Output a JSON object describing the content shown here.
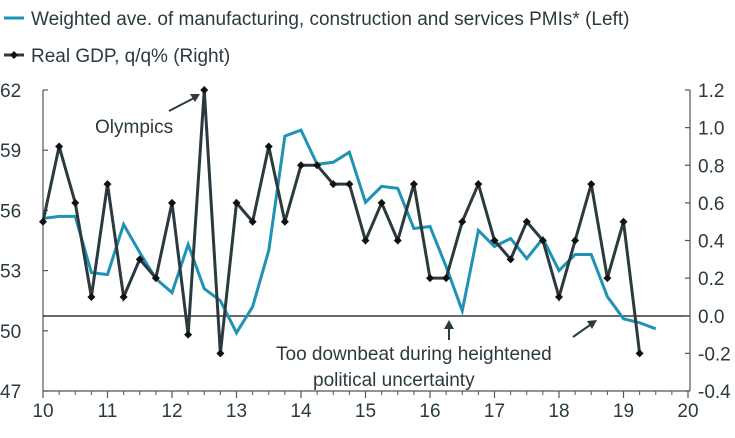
{
  "chart_data": {
    "type": "line",
    "title": "",
    "legend_position": "top-left",
    "legend": [
      {
        "label": "Weighted ave. of manufacturing, construction and services PMIs* (Left)",
        "color": "#1e93b5",
        "marker": "none"
      },
      {
        "label": "Real GDP, q/q% (Right)",
        "color": "#2b3a3f",
        "marker": "diamond"
      }
    ],
    "x_ticks": [
      "10",
      "11",
      "12",
      "13",
      "14",
      "15",
      "16",
      "17",
      "18",
      "19",
      "20"
    ],
    "x_range": [
      2010,
      2020
    ],
    "left_axis": {
      "ticks": [
        "62",
        "59",
        "56",
        "53",
        "50",
        "47"
      ],
      "range": [
        47,
        62
      ]
    },
    "right_axis": {
      "ticks": [
        "1.2",
        "1.0",
        "0.8",
        "0.6",
        "0.4",
        "0.2",
        "0.0",
        "-0.2",
        "-0.4"
      ],
      "range": [
        -0.4,
        1.2
      ]
    },
    "zero_line_right": 0.0,
    "series": [
      {
        "name": "Weighted ave. of manufacturing, construction and services PMIs* (Left)",
        "axis": "left",
        "color": "#1e93b5",
        "x": [
          2010.0,
          2010.25,
          2010.5,
          2010.75,
          2011.0,
          2011.25,
          2011.5,
          2011.75,
          2012.0,
          2012.25,
          2012.5,
          2012.75,
          2013.0,
          2013.25,
          2013.5,
          2013.75,
          2014.0,
          2014.25,
          2014.5,
          2014.75,
          2015.0,
          2015.25,
          2015.5,
          2015.75,
          2016.0,
          2016.25,
          2016.5,
          2016.75,
          2017.0,
          2017.25,
          2017.5,
          2017.75,
          2018.0,
          2018.25,
          2018.5,
          2018.75,
          2019.0,
          2019.25,
          2019.5
        ],
        "values": [
          55.6,
          55.7,
          55.7,
          52.9,
          52.8,
          55.3,
          53.9,
          52.6,
          51.9,
          54.3,
          52.1,
          51.5,
          49.9,
          51.2,
          54.0,
          59.7,
          60.0,
          58.3,
          58.4,
          58.9,
          56.4,
          57.2,
          57.1,
          55.1,
          55.2,
          53.2,
          51.0,
          55.0,
          54.2,
          54.6,
          53.6,
          54.6,
          53.0,
          53.8,
          53.8,
          51.7,
          50.6,
          50.4,
          50.1
        ]
      },
      {
        "name": "Real GDP, q/q% (Right)",
        "axis": "right",
        "color": "#2b3a3f",
        "x": [
          2010.0,
          2010.25,
          2010.5,
          2010.75,
          2011.0,
          2011.25,
          2011.5,
          2011.75,
          2012.0,
          2012.25,
          2012.5,
          2012.75,
          2013.0,
          2013.25,
          2013.5,
          2013.75,
          2014.0,
          2014.25,
          2014.5,
          2014.75,
          2015.0,
          2015.25,
          2015.5,
          2015.75,
          2016.0,
          2016.25,
          2016.5,
          2016.75,
          2017.0,
          2017.25,
          2017.5,
          2017.75,
          2018.0,
          2018.25,
          2018.5,
          2018.75,
          2019.0,
          2019.25
        ],
        "values": [
          0.5,
          0.9,
          0.6,
          0.1,
          0.7,
          0.1,
          0.3,
          0.2,
          0.6,
          -0.1,
          1.2,
          -0.2,
          0.6,
          0.5,
          0.9,
          0.5,
          0.8,
          0.8,
          0.7,
          0.7,
          0.4,
          0.6,
          0.4,
          0.7,
          0.2,
          0.2,
          0.5,
          0.7,
          0.4,
          0.3,
          0.5,
          0.4,
          0.1,
          0.4,
          0.7,
          0.2,
          0.5,
          -0.2
        ]
      }
    ],
    "annotations": [
      {
        "text": "Olympics",
        "points_to": "2012 Q3 GDP spike (1.2)"
      },
      {
        "text_lines": [
          "Too downbeat during heightened",
          "political uncertainty"
        ],
        "points_to": [
          "PMI dip 2016 Q3",
          "PMI fall 2019"
        ]
      }
    ]
  }
}
